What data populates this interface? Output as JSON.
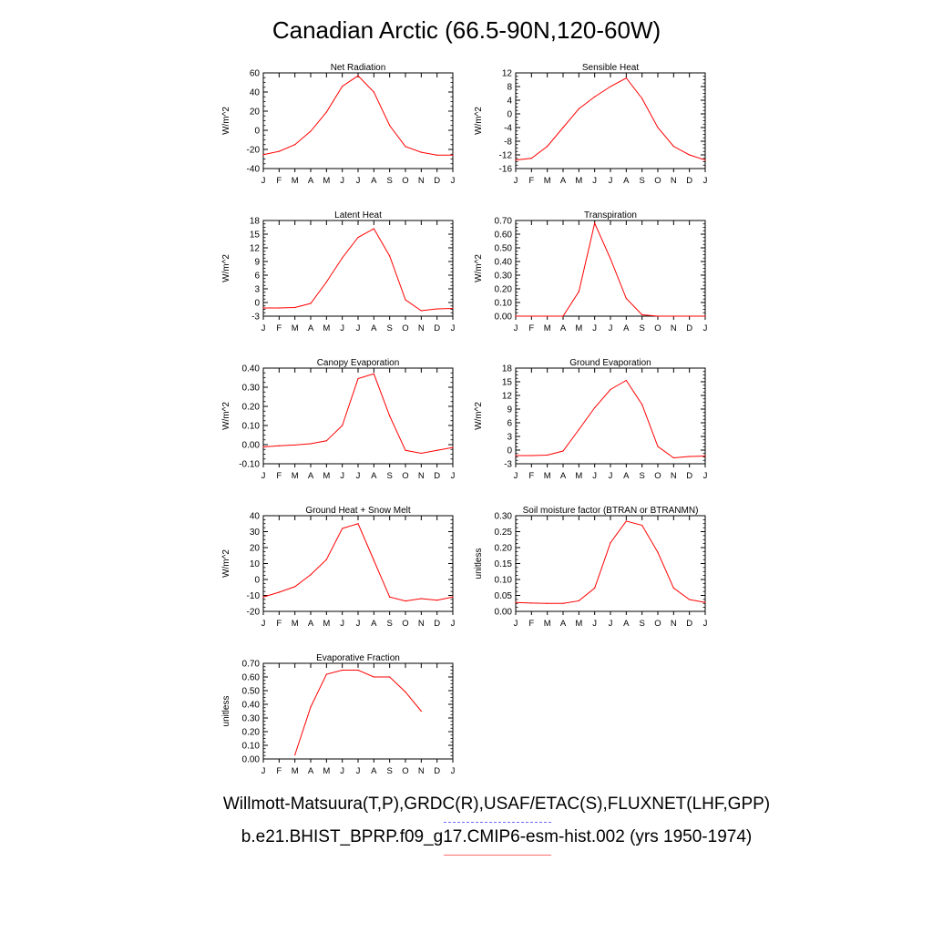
{
  "title": "Canadian Arctic (66.5-90N,120-60W)",
  "footer": {
    "obs_sources": "Willmott-Matsuura(T,P),GRDC(R),USAF/ETAC(S),FLUXNET(LHF,GPP)",
    "model_case": "b.e21.BHIST_BPRP.f09_g17.CMIP6-esm-hist.002 (yrs 1950-1974)",
    "obs_line_color": "#6a6aff",
    "model_line_color": "#ff0000"
  },
  "chart_data": [
    {
      "type": "line",
      "title": "Net Radiation",
      "ylabel": "W/m^2",
      "categories": [
        "J",
        "F",
        "M",
        "A",
        "M",
        "J",
        "J",
        "A",
        "S",
        "O",
        "N",
        "D",
        "J"
      ],
      "ylim": [
        -40,
        60
      ],
      "yticks": [
        -40,
        -20,
        0,
        20,
        40,
        60
      ],
      "ytick_labels": [
        "-40",
        "-20",
        "0",
        "20",
        "40",
        "60"
      ],
      "values": [
        -25.5,
        -22,
        -15,
        -1,
        19,
        46,
        57,
        40,
        5,
        -17,
        -23,
        -26,
        -26
      ],
      "grid": false,
      "color": "#ff0000"
    },
    {
      "type": "line",
      "title": "Sensible Heat",
      "ylabel": "W/m^2",
      "categories": [
        "J",
        "F",
        "M",
        "A",
        "M",
        "J",
        "J",
        "A",
        "S",
        "O",
        "N",
        "D",
        "J"
      ],
      "ylim": [
        -16,
        12
      ],
      "yticks": [
        -16,
        -12,
        -8,
        -4,
        0,
        4,
        8,
        12
      ],
      "ytick_labels": [
        "-16",
        "-12",
        "-8",
        "-4",
        "0",
        "4",
        "8",
        "12"
      ],
      "values": [
        -13.5,
        -13,
        -9.5,
        -4,
        1.5,
        5,
        8,
        10.5,
        4.5,
        -4,
        -9.5,
        -12,
        -13.5
      ],
      "grid": false,
      "color": "#ff0000"
    },
    {
      "type": "line",
      "title": "Latent Heat",
      "ylabel": "W/m^2",
      "categories": [
        "J",
        "F",
        "M",
        "A",
        "M",
        "J",
        "J",
        "A",
        "S",
        "O",
        "N",
        "D",
        "J"
      ],
      "ylim": [
        -3,
        18
      ],
      "yticks": [
        -3,
        0,
        3,
        6,
        9,
        12,
        15,
        18
      ],
      "ytick_labels": [
        "-3",
        "0",
        "3",
        "6",
        "9",
        "12",
        "15",
        "18"
      ],
      "values": [
        -1.2,
        -1.2,
        -1.1,
        -0.2,
        4.5,
        9.8,
        14.3,
        16.2,
        10.2,
        0.6,
        -1.8,
        -1.4,
        -1.3
      ],
      "grid": false,
      "color": "#ff0000"
    },
    {
      "type": "line",
      "title": "Transpiration",
      "ylabel": "W/m^2",
      "categories": [
        "J",
        "F",
        "M",
        "A",
        "M",
        "J",
        "J",
        "A",
        "S",
        "O",
        "N",
        "D",
        "J"
      ],
      "ylim": [
        0,
        0.7
      ],
      "yticks": [
        0,
        0.1,
        0.2,
        0.3,
        0.4,
        0.5,
        0.6,
        0.7
      ],
      "ytick_labels": [
        "0.00",
        "0.10",
        "0.20",
        "0.30",
        "0.40",
        "0.50",
        "0.60",
        "0.70"
      ],
      "values": [
        0,
        0,
        0,
        0,
        0.18,
        0.68,
        0.42,
        0.13,
        0.01,
        0,
        0,
        0,
        0
      ],
      "grid": false,
      "color": "#ff0000"
    },
    {
      "type": "line",
      "title": "Canopy Evaporation",
      "ylabel": "W/m^2",
      "categories": [
        "J",
        "F",
        "M",
        "A",
        "M",
        "J",
        "J",
        "A",
        "S",
        "O",
        "N",
        "D",
        "J"
      ],
      "ylim": [
        -0.1,
        0.4
      ],
      "yticks": [
        -0.1,
        0,
        0.1,
        0.2,
        0.3,
        0.4
      ],
      "ytick_labels": [
        "-0.10",
        "0.00",
        "0.10",
        "0.20",
        "0.30",
        "0.40"
      ],
      "values": [
        -0.012,
        -0.006,
        -0.002,
        0.005,
        0.02,
        0.1,
        0.345,
        0.37,
        0.15,
        -0.03,
        -0.045,
        -0.03,
        -0.015
      ],
      "grid": false,
      "color": "#ff0000"
    },
    {
      "type": "line",
      "title": "Ground Evaporation",
      "ylabel": "W/m^2",
      "categories": [
        "J",
        "F",
        "M",
        "A",
        "M",
        "J",
        "J",
        "A",
        "S",
        "O",
        "N",
        "D",
        "J"
      ],
      "ylim": [
        -3,
        18
      ],
      "yticks": [
        -3,
        0,
        3,
        6,
        9,
        12,
        15,
        18
      ],
      "ytick_labels": [
        "-3",
        "0",
        "3",
        "6",
        "9",
        "12",
        "15",
        "18"
      ],
      "values": [
        -1.2,
        -1.2,
        -1.1,
        -0.2,
        4.5,
        9.3,
        13.3,
        15.3,
        10,
        0.8,
        -1.7,
        -1.4,
        -1.3
      ],
      "grid": false,
      "color": "#ff0000"
    },
    {
      "type": "line",
      "title": "Ground Heat + Snow Melt",
      "ylabel": "W/m^2",
      "categories": [
        "J",
        "F",
        "M",
        "A",
        "M",
        "J",
        "J",
        "A",
        "S",
        "O",
        "N",
        "D",
        "J"
      ],
      "ylim": [
        -20,
        40
      ],
      "yticks": [
        -20,
        -10,
        0,
        10,
        20,
        30,
        40
      ],
      "ytick_labels": [
        "-20",
        "-10",
        "0",
        "10",
        "20",
        "30",
        "40"
      ],
      "values": [
        -11,
        -8,
        -4.5,
        3,
        12.5,
        32,
        35,
        12,
        -11,
        -13.5,
        -12,
        -13,
        -11
      ],
      "grid": false,
      "color": "#ff0000"
    },
    {
      "type": "line",
      "title": "Soil moisture factor (BTRAN or BTRANMN)",
      "ylabel": "unitless",
      "categories": [
        "J",
        "F",
        "M",
        "A",
        "M",
        "J",
        "J",
        "A",
        "S",
        "O",
        "N",
        "D",
        "J"
      ],
      "ylim": [
        0,
        0.3
      ],
      "yticks": [
        0,
        0.05,
        0.1,
        0.15,
        0.2,
        0.25,
        0.3
      ],
      "ytick_labels": [
        "0.00",
        "0.05",
        "0.10",
        "0.15",
        "0.20",
        "0.25",
        "0.30"
      ],
      "values": [
        0.028,
        0.026,
        0.025,
        0.025,
        0.033,
        0.073,
        0.215,
        0.283,
        0.27,
        0.185,
        0.073,
        0.037,
        0.028
      ],
      "grid": false,
      "color": "#ff0000"
    },
    {
      "type": "line",
      "title": "Evaporative Fraction",
      "ylabel": "unitless",
      "categories": [
        "J",
        "F",
        "M",
        "A",
        "M",
        "J",
        "J",
        "A",
        "S",
        "O",
        "N",
        "D",
        "J"
      ],
      "ylim": [
        0,
        0.7
      ],
      "yticks": [
        0,
        0.1,
        0.2,
        0.3,
        0.4,
        0.5,
        0.6,
        0.7
      ],
      "ytick_labels": [
        "0.00",
        "0.10",
        "0.20",
        "0.30",
        "0.40",
        "0.50",
        "0.60",
        "0.70"
      ],
      "values": [
        null,
        null,
        0.03,
        0.38,
        0.62,
        0.65,
        0.65,
        0.6,
        0.6,
        0.49,
        0.35,
        null,
        null
      ],
      "grid": false,
      "color": "#ff0000"
    }
  ]
}
